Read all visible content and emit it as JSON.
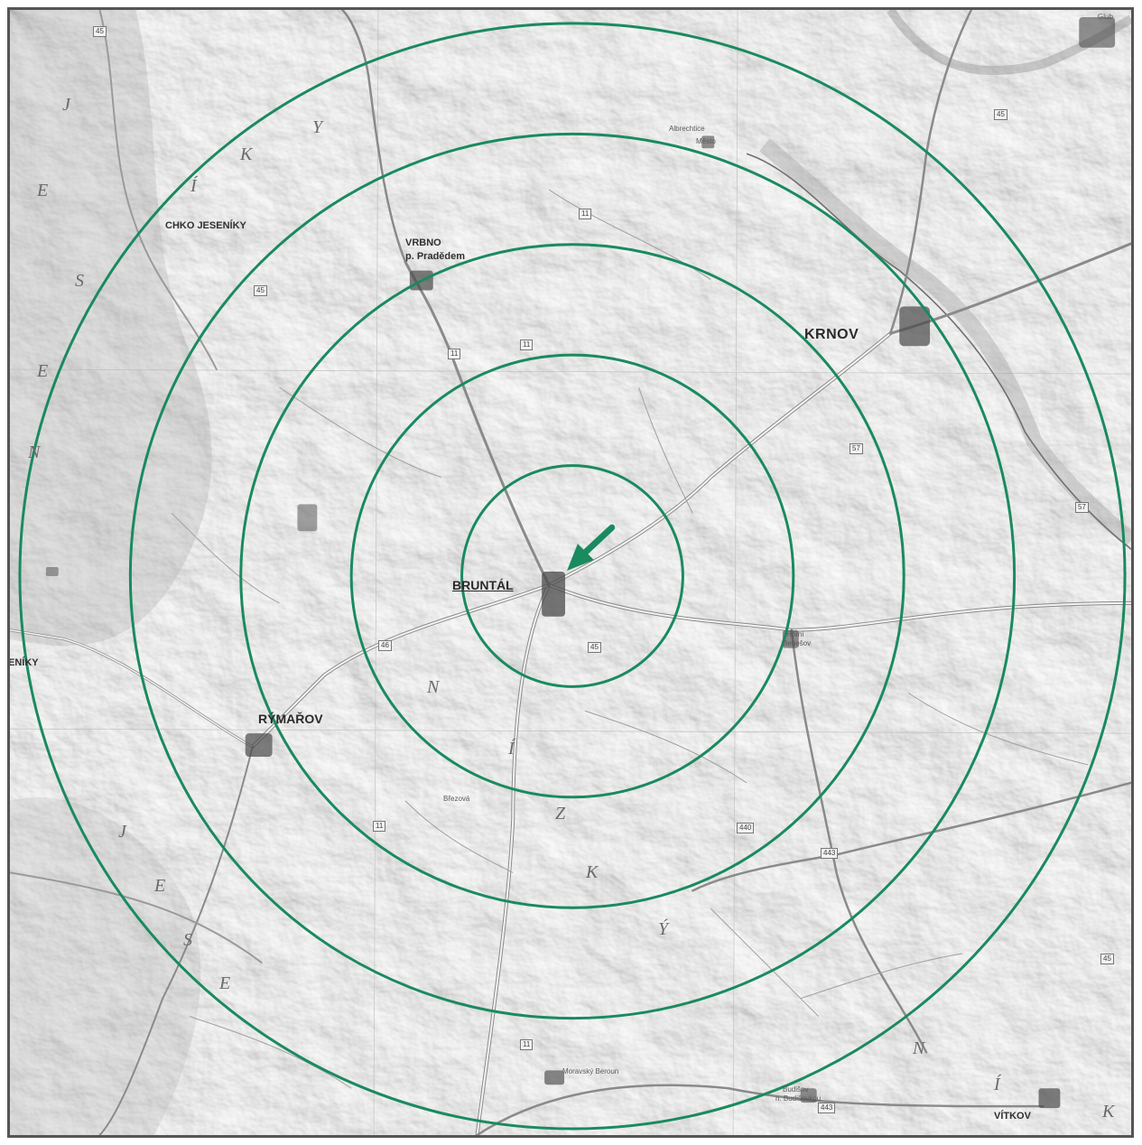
{
  "map": {
    "style": "grayscale relief road map",
    "overlay_color": "#1a8a5f",
    "ring_count": 5,
    "marker": "arrow pointing to Bruntál",
    "places": {
      "bruntal": "BRUNTÁL",
      "krnov": "KRNOV",
      "vrbno_line1": "VRBNO",
      "vrbno_line2": "p. Pradědem",
      "rymarov": "RÝMAŘOV",
      "vitkov": "VÍTKOV",
      "chko": "CHKO JESENÍKY",
      "jeseniky_edge": "ENÍKY",
      "brezova": "Březová",
      "albrechtice": "Albrechtice",
      "moravsky_beroun": "Moravský Beroun",
      "budisov_line1": "Budišov",
      "budisov_line2": "n. Budišovkou",
      "horni_benesov_line1": "Horní",
      "horni_benesov_line2": "Benešov",
      "mesto_albrechtice": "Město",
      "guty": "Glub"
    },
    "region_letters": [
      "J",
      "E",
      "S",
      "E",
      "N",
      "Í",
      "K",
      "Y",
      "N",
      "Í",
      "Z",
      "K",
      "Ý",
      "J",
      "E",
      "S",
      "E",
      "N",
      "Í",
      "K"
    ],
    "road_numbers": [
      "45",
      "45",
      "11",
      "11",
      "57",
      "45",
      "46",
      "11",
      "45",
      "11",
      "57",
      "45",
      "11",
      "443",
      "440",
      "443",
      "445"
    ]
  }
}
